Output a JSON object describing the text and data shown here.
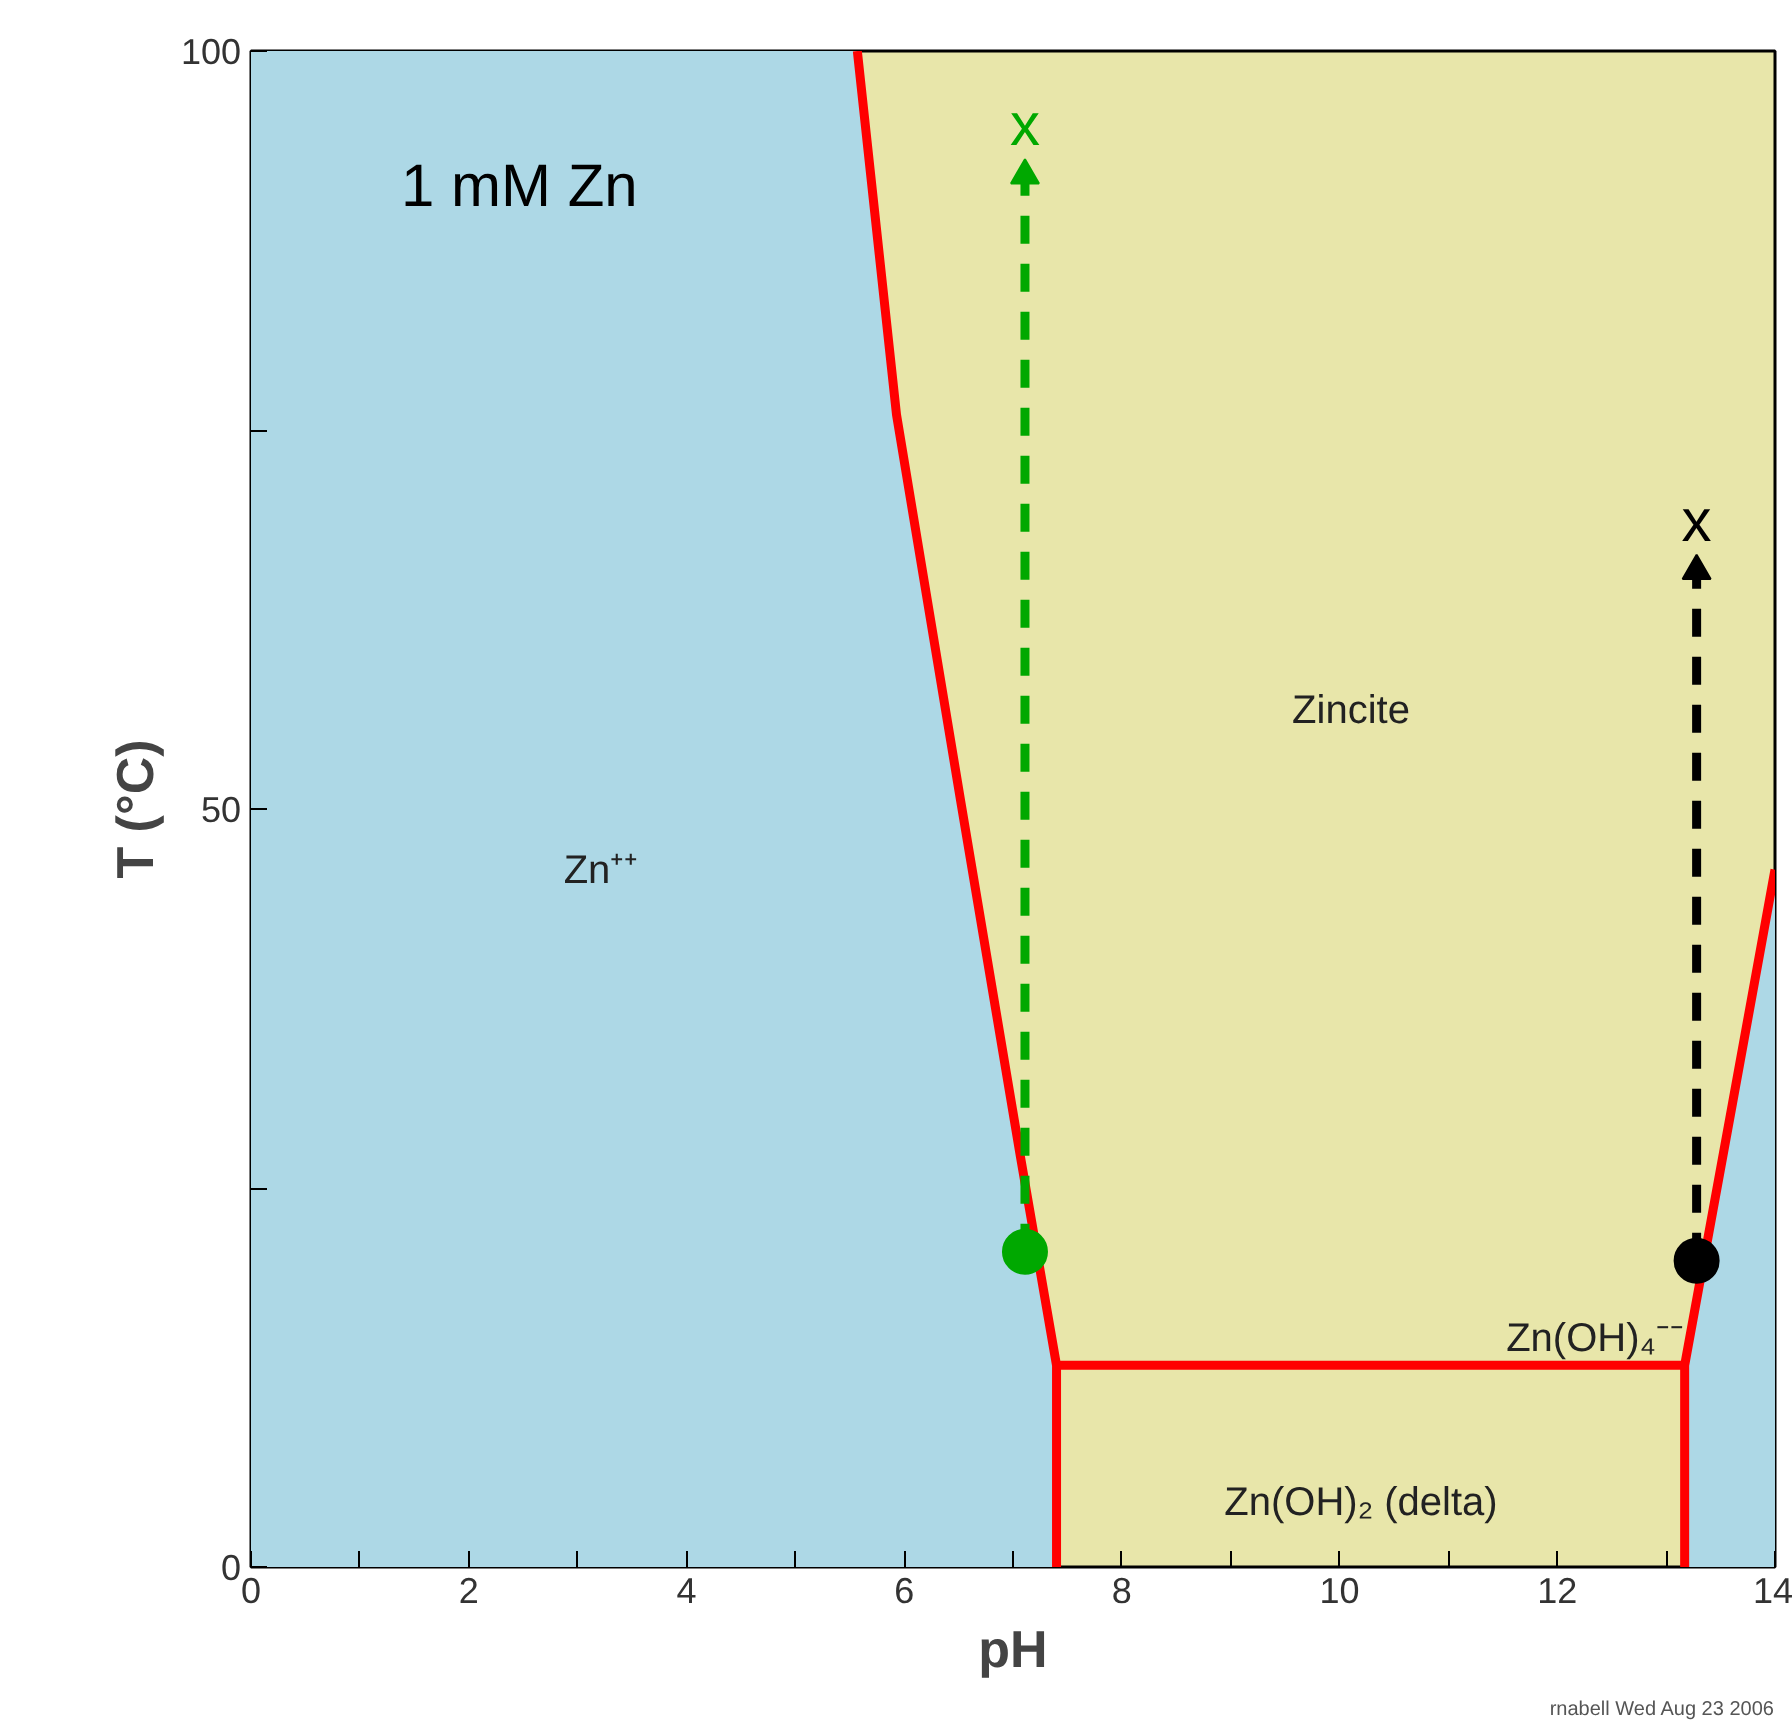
{
  "chart_data": {
    "type": "line",
    "xlabel": "pH",
    "ylabel": "T (°C)",
    "xlim": [
      0,
      14
    ],
    "ylim": [
      0,
      100
    ],
    "xticks": [
      0,
      {
        "value": 1,
        "label": null
      },
      2,
      {
        "value": 3,
        "label": null
      },
      4,
      {
        "value": 5,
        "label": null
      },
      6,
      {
        "value": 7,
        "label": null
      },
      8,
      {
        "value": 9,
        "label": null
      },
      10,
      {
        "value": 11,
        "label": null
      },
      12,
      {
        "value": 13,
        "label": null
      },
      14
    ],
    "yticks": [
      0,
      {
        "value": 25,
        "label": null
      },
      50,
      {
        "value": 75,
        "label": null
      },
      100
    ],
    "grid": false,
    "series": [
      {
        "type": "area",
        "color": "#add8e6",
        "x": [
          0,
          5.57,
          5.93,
          6.52,
          7.07,
          7.4
        ],
        "values": [
          100,
          100,
          76,
          50.5,
          27,
          13.3
        ]
      },
      {
        "type": "area",
        "color": "#add8e6",
        "x": [
          13.17,
          13.61,
          14
        ],
        "values": [
          13.3,
          30.6,
          46
        ]
      },
      {
        "color": "#ff0000",
        "x": [
          5.57,
          5.93,
          6.52,
          7.07,
          7.4,
          13.17,
          13.61,
          14,
          null,
          7.4,
          7.4,
          null,
          13.17,
          13.17
        ],
        "values": [
          100,
          76,
          50.5,
          27,
          13.3,
          13.3,
          30.6,
          46,
          null,
          0,
          13.3,
          null,
          0,
          13.3
        ]
      },
      {
        "name": "x",
        "color": "#00a800",
        "line_style": "dashed",
        "x": [
          7.11,
          7.11
        ],
        "values": [
          20.8,
          91.8
        ]
      },
      {
        "type": "scatter",
        "color": "#00a800",
        "marker": "triangle",
        "x": [
          7.11
        ],
        "values": [
          91.8
        ]
      },
      {
        "type": "scatter",
        "color": "#00a800",
        "marker": "circle",
        "x": [
          7.11
        ],
        "values": [
          20.8
        ]
      },
      {
        "name": "x",
        "color": "#000000",
        "line_style": "dashed",
        "x": [
          13.28,
          13.28
        ],
        "values": [
          20.2,
          65.7
        ]
      },
      {
        "type": "scatter",
        "color": "#000000",
        "marker": "triangle",
        "x": [
          13.28
        ],
        "values": [
          65.7
        ]
      },
      {
        "type": "scatter",
        "color": "#000000",
        "marker": "circle",
        "x": [
          13.28
        ],
        "values": [
          20.2
        ]
      }
    ],
    "annotations": [
      "1 mM Zn",
      "Zn⁺⁺",
      "Zincite",
      "Zn(OH)₄⁻⁻",
      "Zn(OH)₂ (delta)",
      "rnabell Wed Aug 23 2006"
    ]
  }
}
